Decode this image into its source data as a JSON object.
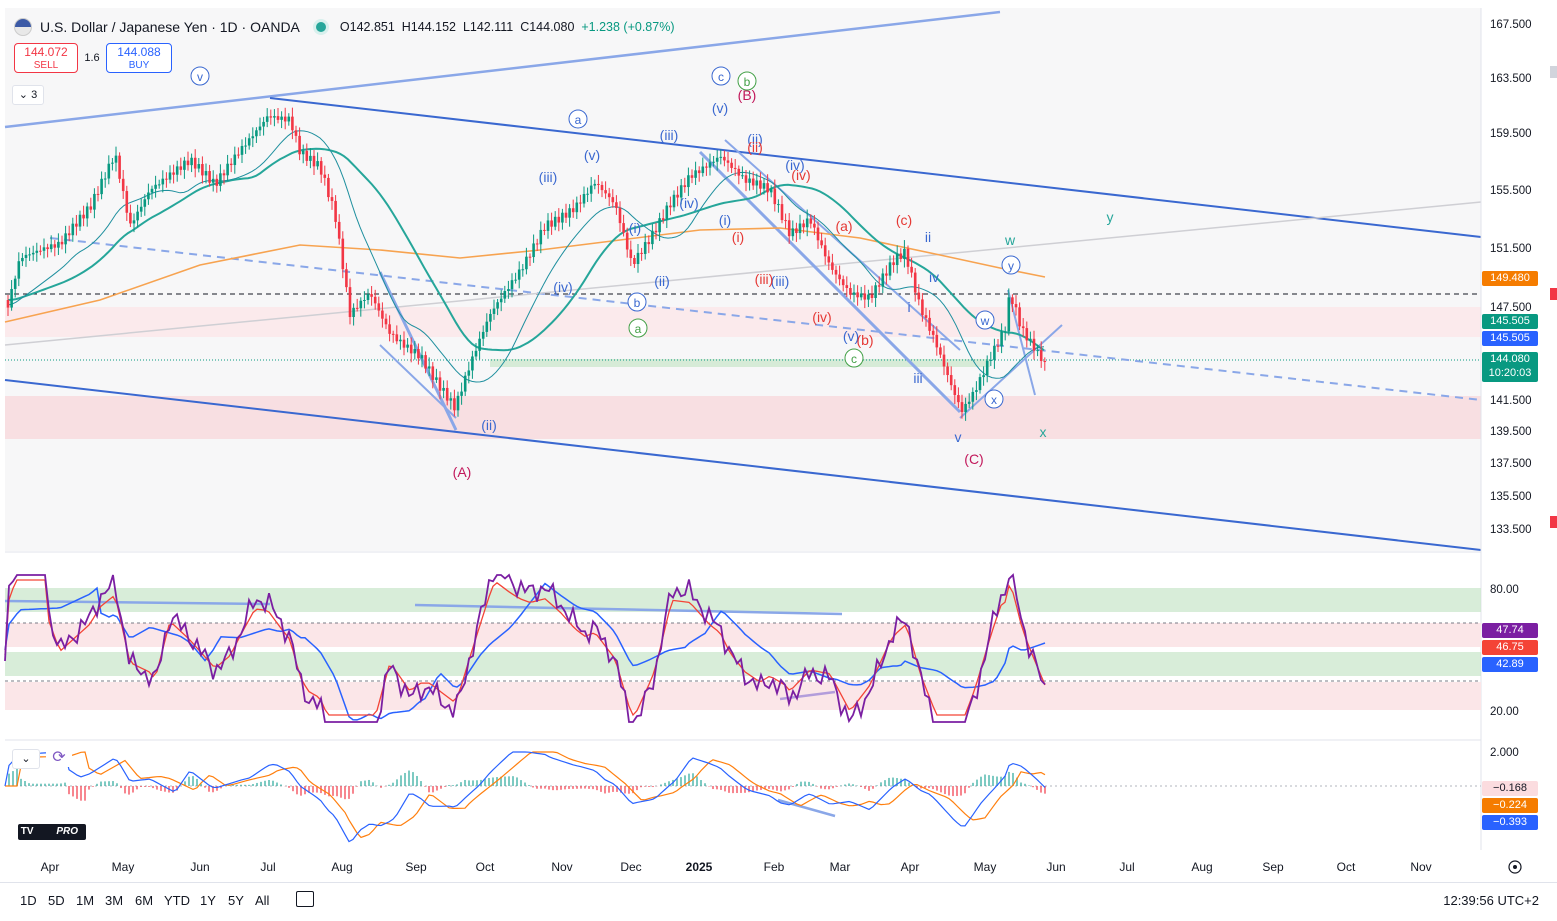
{
  "header": {
    "title": "U.S. Dollar / Japanese Yen · 1D · OANDA",
    "open": "O142.851",
    "high": "H144.152",
    "low": "L142.111",
    "close": "C144.080",
    "change": "+1.238 (+0.87%)"
  },
  "trade": {
    "sell_price": "144.072",
    "sell_label": "SELL",
    "spread": "1.6",
    "buy_price": "144.088",
    "buy_label": "BUY"
  },
  "indicators_toggle": "3",
  "price_axis": [
    "167.500",
    "163.500",
    "159.500",
    "155.500",
    "151.500",
    "147.500",
    "141.500",
    "139.500",
    "137.500",
    "135.500",
    "133.500"
  ],
  "price_badges": {
    "ma200": "149.480",
    "ma50a": "145.505",
    "ma50b": "145.505",
    "last": "144.080",
    "countdown": "10:20:03"
  },
  "rsi_axis": [
    "80.00",
    "20.00"
  ],
  "rsi_badges": [
    "47.74",
    "46.75",
    "42.89"
  ],
  "macd_axis": [
    "2.000"
  ],
  "macd_badges": [
    "−0.168",
    "−0.224",
    "−0.393"
  ],
  "time_axis": [
    "Apr",
    "May",
    "Jun",
    "Jul",
    "Aug",
    "Sep",
    "Oct",
    "Nov",
    "Dec",
    "2025",
    "Feb",
    "Mar",
    "Apr",
    "May",
    "Jun",
    "Jul",
    "Aug",
    "Sep",
    "Oct",
    "Nov"
  ],
  "wave_labels": [
    "v",
    "a",
    "c",
    "b",
    "(B)",
    "(v)",
    "(ii)",
    "(iii)",
    "(iii)",
    "(v)",
    "(ii)",
    "(iv)",
    "(iv)",
    "(i)",
    "(i)",
    "(iv)",
    "(a)",
    "(c)",
    "ii",
    "w",
    "y",
    "(iii)",
    "(ii)",
    "(iv)",
    "(i)",
    "(ii)",
    "(v)",
    "(b)",
    "iii",
    "iv",
    "i",
    "v",
    "(C)",
    "x",
    "(A)",
    "b",
    "a",
    "c",
    "w",
    "x",
    "y",
    "(iii)",
    "(iv)"
  ],
  "timeframes": [
    "1D",
    "5D",
    "1M",
    "3M",
    "6M",
    "YTD",
    "1Y",
    "5Y",
    "All"
  ],
  "clock": "12:39:56 UTC+2",
  "logo": "PRO",
  "colors": {
    "up": "#089981",
    "down": "#f23645",
    "ma20": "#26a69a",
    "ma200": "#f7a350",
    "channel": "#3d6fd4",
    "rsi": "#8a2be2",
    "accent": "#2962ff"
  }
}
